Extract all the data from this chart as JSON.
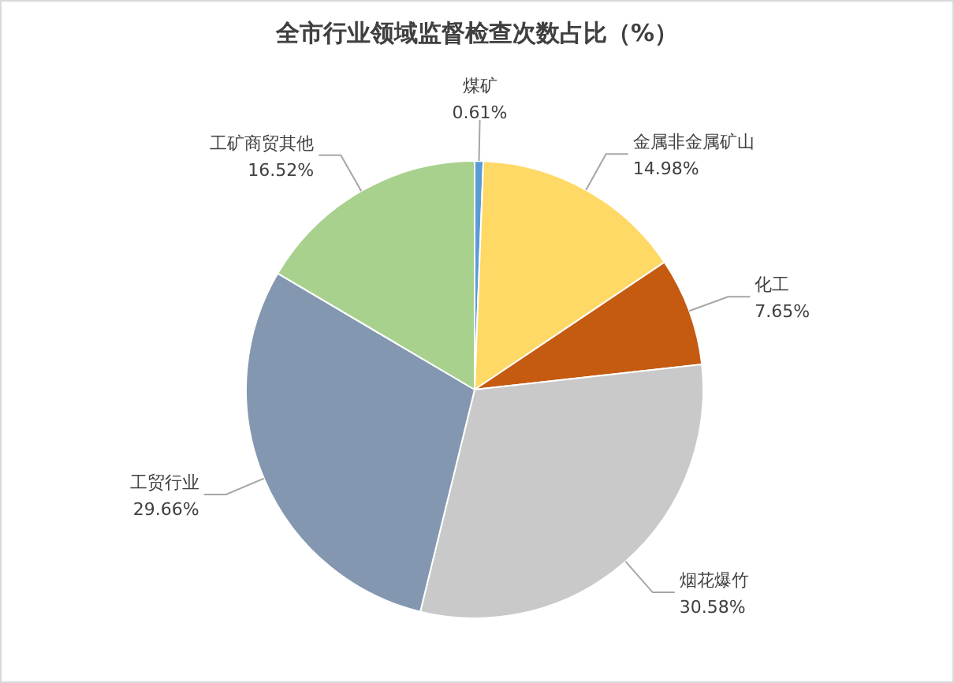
{
  "chart_data": {
    "type": "pie",
    "title": "全市行业领域监督检查次数占比（%）",
    "categories": [
      "煤矿",
      "金属非金属矿山",
      "化工",
      "烟花爆竹",
      "工贸行业",
      "工矿商贸其他"
    ],
    "values": [
      0.61,
      14.98,
      7.65,
      30.58,
      29.66,
      16.52
    ],
    "value_labels": [
      "0.61%",
      "14.98%",
      "7.65%",
      "30.58%",
      "29.66%",
      "16.52%"
    ],
    "colors": [
      "#5b9bd5",
      "#ffd966",
      "#c55a11",
      "#c9c9c9",
      "#8497b0",
      "#a9d18e"
    ]
  }
}
